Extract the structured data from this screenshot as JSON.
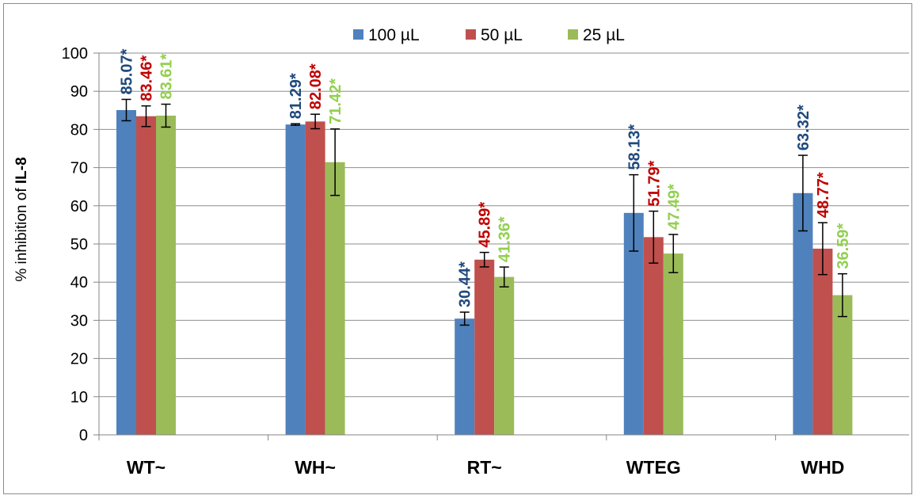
{
  "chart_data": {
    "type": "bar",
    "title": "",
    "xlabel": "",
    "ylabel_prefix": "% inhibition of ",
    "ylabel_bold": "IL-8",
    "ylim": [
      0,
      100
    ],
    "yticks": [
      "0",
      "10",
      "20",
      "30",
      "40",
      "50",
      "60",
      "70",
      "80",
      "90",
      "100"
    ],
    "grid": true,
    "legend_position": "top",
    "categories": [
      "WT~",
      "WH~",
      "RT~",
      "WTEG",
      "WHD"
    ],
    "series": [
      {
        "name": "100 µL",
        "color": "#4f81bd",
        "values": [
          85.07,
          81.29,
          30.44,
          58.13,
          63.32
        ],
        "errors": [
          2.8,
          0.2,
          1.7,
          10.0,
          9.9
        ],
        "labels": [
          "85.07*",
          "81.29*",
          "30.44*",
          "58.13*",
          "63.32*"
        ]
      },
      {
        "name": "50  µL",
        "color": "#c0504d",
        "values": [
          83.46,
          82.08,
          45.89,
          51.79,
          48.77
        ],
        "errors": [
          2.7,
          1.9,
          1.9,
          6.8,
          6.8
        ],
        "labels": [
          "83.46*",
          "82.08*",
          "45.89*",
          "51.79*",
          "48.77*"
        ]
      },
      {
        "name": "25  µL",
        "color": "#9bbb59",
        "values": [
          83.61,
          71.42,
          41.36,
          47.49,
          36.59
        ],
        "errors": [
          3.0,
          8.7,
          2.6,
          5.0,
          5.6
        ],
        "labels": [
          "83.61*",
          "71.42*",
          "41.36*",
          "47.49*",
          "36.59*"
        ]
      }
    ],
    "label_colors": [
      "#1f497d",
      "#c00000",
      "#92d050"
    ]
  }
}
